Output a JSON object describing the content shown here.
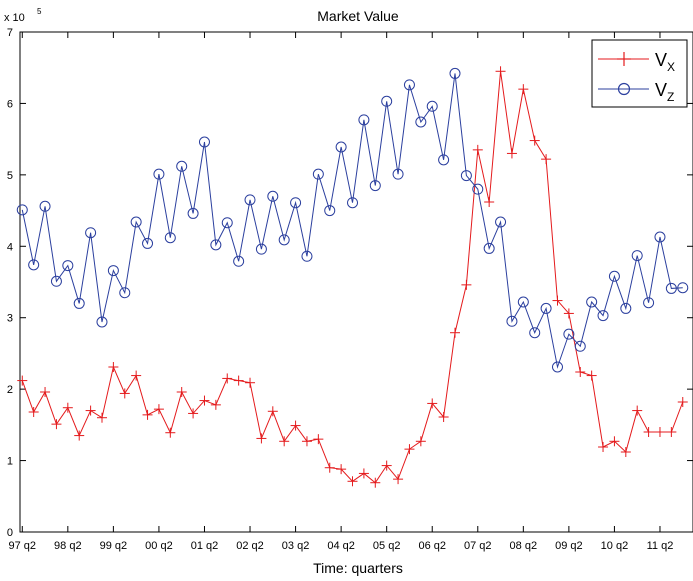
{
  "chart_data": {
    "type": "line",
    "title": "Market Value",
    "xlabel": "Time: quarters",
    "ylabel": "",
    "y_exponent_label": "x 10",
    "y_exponent_power": "5",
    "ylim": [
      0,
      7
    ],
    "yticks": [
      0,
      1,
      2,
      3,
      4,
      5,
      6,
      7
    ],
    "x_range": [
      -0.2,
      58.9
    ],
    "xtick_positions": [
      0,
      4,
      8,
      12,
      16,
      20,
      24,
      28,
      32,
      36,
      40,
      44,
      48,
      52,
      56
    ],
    "xtick_labels": [
      "97 q2",
      "98 q2",
      "99 q2",
      "00 q2",
      "01 q2",
      "02 q2",
      "03 q2",
      "04 q2",
      "05 q2",
      "06 q2",
      "07 q2",
      "08 q2",
      "09 q2",
      "10 q2",
      "11 q2"
    ],
    "legend_position": "top-right",
    "grid": false,
    "series": [
      {
        "name_main": "V",
        "name_sub": "X",
        "color": "#e41a1c",
        "marker": "plus",
        "values": [
          2.12,
          1.68,
          1.96,
          1.51,
          1.74,
          1.35,
          1.7,
          1.6,
          2.31,
          1.94,
          2.19,
          1.64,
          1.72,
          1.39,
          1.96,
          1.66,
          1.84,
          1.78,
          2.15,
          2.12,
          2.09,
          1.31,
          1.69,
          1.27,
          1.49,
          1.27,
          1.3,
          0.9,
          0.88,
          0.71,
          0.82,
          0.69,
          0.93,
          0.74,
          1.16,
          1.27,
          1.8,
          1.61,
          2.79,
          3.46,
          5.35,
          4.62,
          6.45,
          5.3,
          6.2,
          5.48,
          5.22,
          3.24,
          3.06,
          2.24,
          2.19,
          1.19,
          1.27,
          1.12,
          1.7,
          1.4,
          1.4,
          1.4,
          1.82
        ]
      },
      {
        "name_main": "V",
        "name_sub": "Z",
        "color": "#2b3f9e",
        "marker": "circle",
        "values": [
          4.51,
          3.74,
          4.56,
          3.51,
          3.73,
          3.2,
          4.19,
          2.94,
          3.66,
          3.35,
          4.34,
          4.04,
          5.01,
          4.12,
          5.12,
          4.46,
          5.46,
          4.02,
          4.33,
          3.79,
          4.65,
          3.96,
          4.7,
          4.09,
          4.61,
          3.86,
          5.01,
          4.5,
          5.39,
          4.61,
          5.77,
          4.85,
          6.03,
          5.01,
          6.26,
          5.74,
          5.96,
          5.21,
          6.42,
          4.99,
          4.8,
          3.97,
          4.34,
          2.95,
          3.22,
          2.79,
          3.13,
          2.31,
          2.77,
          2.6,
          3.22,
          3.03,
          3.58,
          3.13,
          3.87,
          3.21,
          4.13,
          3.41,
          3.42
        ]
      }
    ]
  }
}
